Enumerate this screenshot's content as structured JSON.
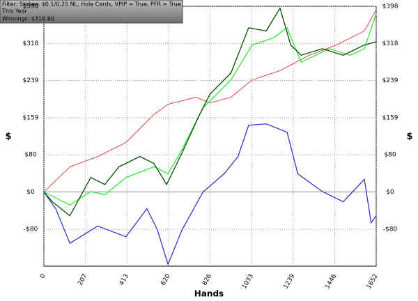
{
  "chart_data": {
    "type": "line",
    "info": [
      "Filter: Stakes: $0.1/0.25 NL, Hole Cards, VPIP = True, PFR = True",
      "This Year",
      "Winnings: $318.80"
    ],
    "x_label": "Hands",
    "y_label": "$",
    "y2_label": "$",
    "xlim": [
      0,
      1652
    ],
    "xticks": [
      0,
      207,
      413,
      620,
      826,
      1033,
      1239,
      1446,
      1652
    ],
    "ylim": [
      -159,
      398
    ],
    "yticks": [
      {
        "value": -80,
        "label": "-$80"
      },
      {
        "value": 0,
        "label": "$0"
      },
      {
        "value": 80,
        "label": "$80"
      },
      {
        "value": 159,
        "label": "$159"
      },
      {
        "value": 239,
        "label": "$239"
      },
      {
        "value": 318,
        "label": "$318"
      },
      {
        "value": 398,
        "label": "$398"
      }
    ],
    "grid": true,
    "series": [
      {
        "color": "#e02020",
        "x": [
          0,
          130,
          268,
          408,
          547,
          617,
          756,
          826,
          930,
          1035,
          1174,
          1314,
          1453,
          1593,
          1652
        ],
        "values": [
          0,
          54,
          76,
          106,
          166,
          188,
          203,
          191,
          203,
          240,
          260,
          292,
          315,
          345,
          390
        ]
      },
      {
        "color": "#34ea34",
        "x": [
          0,
          129,
          233,
          303,
          408,
          547,
          617,
          687,
          791,
          930,
          1035,
          1140,
          1209,
          1279,
          1418,
          1523,
          1593,
          1652
        ],
        "values": [
          0,
          -28,
          1,
          -6,
          31,
          54,
          39,
          91,
          180,
          240,
          315,
          330,
          352,
          278,
          307,
          293,
          307,
          382
        ]
      },
      {
        "color": "#004d00",
        "x": [
          0,
          42,
          129,
          233,
          303,
          373,
          477,
          547,
          610,
          687,
          774,
          826,
          930,
          1018,
          1105,
          1174,
          1227,
          1279,
          1384,
          1488,
          1593,
          1652
        ],
        "values": [
          0,
          -21,
          -51,
          31,
          16,
          54,
          76,
          61,
          16,
          84,
          166,
          210,
          255,
          352,
          345,
          394,
          315,
          293,
          307,
          293,
          315,
          322
        ]
      },
      {
        "color": "#3333cc",
        "x": [
          0,
          59,
          129,
          268,
          408,
          512,
          564,
          617,
          687,
          791,
          896,
          965,
          1018,
          1105,
          1209,
          1262,
          1384,
          1488,
          1593,
          1627,
          1652
        ],
        "values": [
          0,
          -36,
          -110,
          -73,
          -96,
          -36,
          -81,
          -155,
          -81,
          0,
          39,
          76,
          143,
          146,
          128,
          39,
          1,
          -21,
          27,
          -66,
          -51
        ]
      }
    ]
  }
}
